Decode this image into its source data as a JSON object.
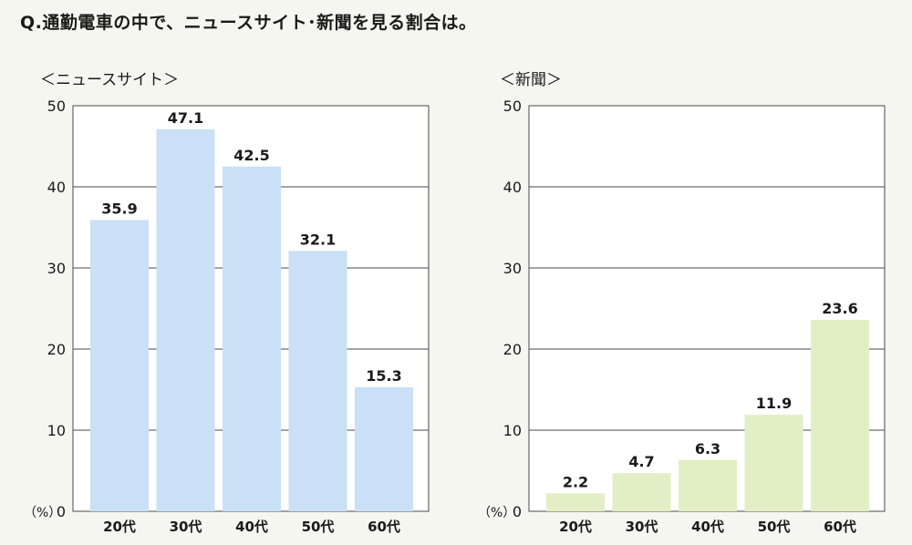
{
  "title": "Q.通勤電車の中で、ニュースサイト･新聞を見る割合は。",
  "unit_label": "（%）",
  "colors": {
    "news_bar": "#c9e0f6",
    "paper_bar": "#e2efc4",
    "grid": "#4a4a4a",
    "background": "#f5f6ef"
  },
  "chart_data": [
    {
      "type": "bar",
      "title": "＜ニュースサイト＞",
      "categories": [
        "20代",
        "30代",
        "40代",
        "50代",
        "60代"
      ],
      "values": [
        35.9,
        47.1,
        42.5,
        32.1,
        15.3
      ],
      "value_labels": [
        "35.9",
        "47.1",
        "42.5",
        "32.1",
        "15.3"
      ],
      "ylim": [
        0,
        50
      ],
      "yticks": [
        "0",
        "10",
        "20",
        "30",
        "40",
        "50"
      ],
      "grid": true
    },
    {
      "type": "bar",
      "title": "＜新聞＞",
      "categories": [
        "20代",
        "30代",
        "40代",
        "50代",
        "60代"
      ],
      "values": [
        2.2,
        4.7,
        6.3,
        11.9,
        23.6
      ],
      "value_labels": [
        "2.2",
        "4.7",
        "6.3",
        "11.9",
        "23.6"
      ],
      "ylim": [
        0,
        50
      ],
      "yticks": [
        "0",
        "10",
        "20",
        "30",
        "40",
        "50"
      ],
      "grid": true
    }
  ]
}
